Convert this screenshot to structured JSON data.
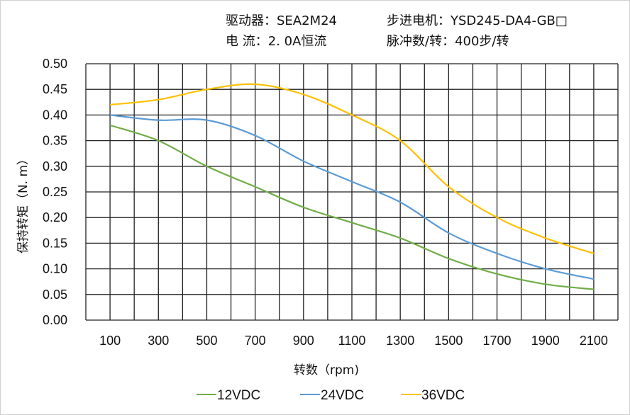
{
  "header": {
    "driver_label": "驱动器：SEA2M24",
    "current_label": "电    流：2. 0A恒流",
    "motor_label": "步进电机：YSD245-DA4-GB□",
    "pulses_label": "脉冲数/转：400步/转"
  },
  "chart_data": {
    "type": "line",
    "title": "",
    "xlabel": "转数（rpm)",
    "ylabel": "保持转矩（N. m）",
    "x": [
      100,
      300,
      500,
      700,
      900,
      1100,
      1300,
      1500,
      1700,
      1900,
      2100
    ],
    "x_tick_labels": [
      "100",
      "300",
      "500",
      "700",
      "900",
      "1100",
      "1300",
      "1500",
      "1700",
      "1900",
      "2100"
    ],
    "y_tick_labels": [
      "0.00",
      "0.05",
      "0.10",
      "0.15",
      "0.20",
      "0.25",
      "0.30",
      "0.35",
      "0.40",
      "0.45",
      "0.50"
    ],
    "xlim": [
      0,
      2200
    ],
    "ylim": [
      0,
      0.5
    ],
    "grid": true,
    "smooth": true,
    "legend_position": "bottom",
    "series": [
      {
        "name": "12VDC",
        "color": "#70ad47",
        "values": [
          0.38,
          0.35,
          0.3,
          0.26,
          0.22,
          0.19,
          0.16,
          0.12,
          0.09,
          0.07,
          0.06
        ]
      },
      {
        "name": "24VDC",
        "color": "#5b9bd5",
        "values": [
          0.4,
          0.39,
          0.39,
          0.36,
          0.31,
          0.27,
          0.23,
          0.17,
          0.13,
          0.1,
          0.08
        ]
      },
      {
        "name": "36VDC",
        "color": "#ffc000",
        "values": [
          0.42,
          0.43,
          0.45,
          0.46,
          0.44,
          0.4,
          0.35,
          0.26,
          0.2,
          0.16,
          0.13
        ]
      }
    ]
  }
}
